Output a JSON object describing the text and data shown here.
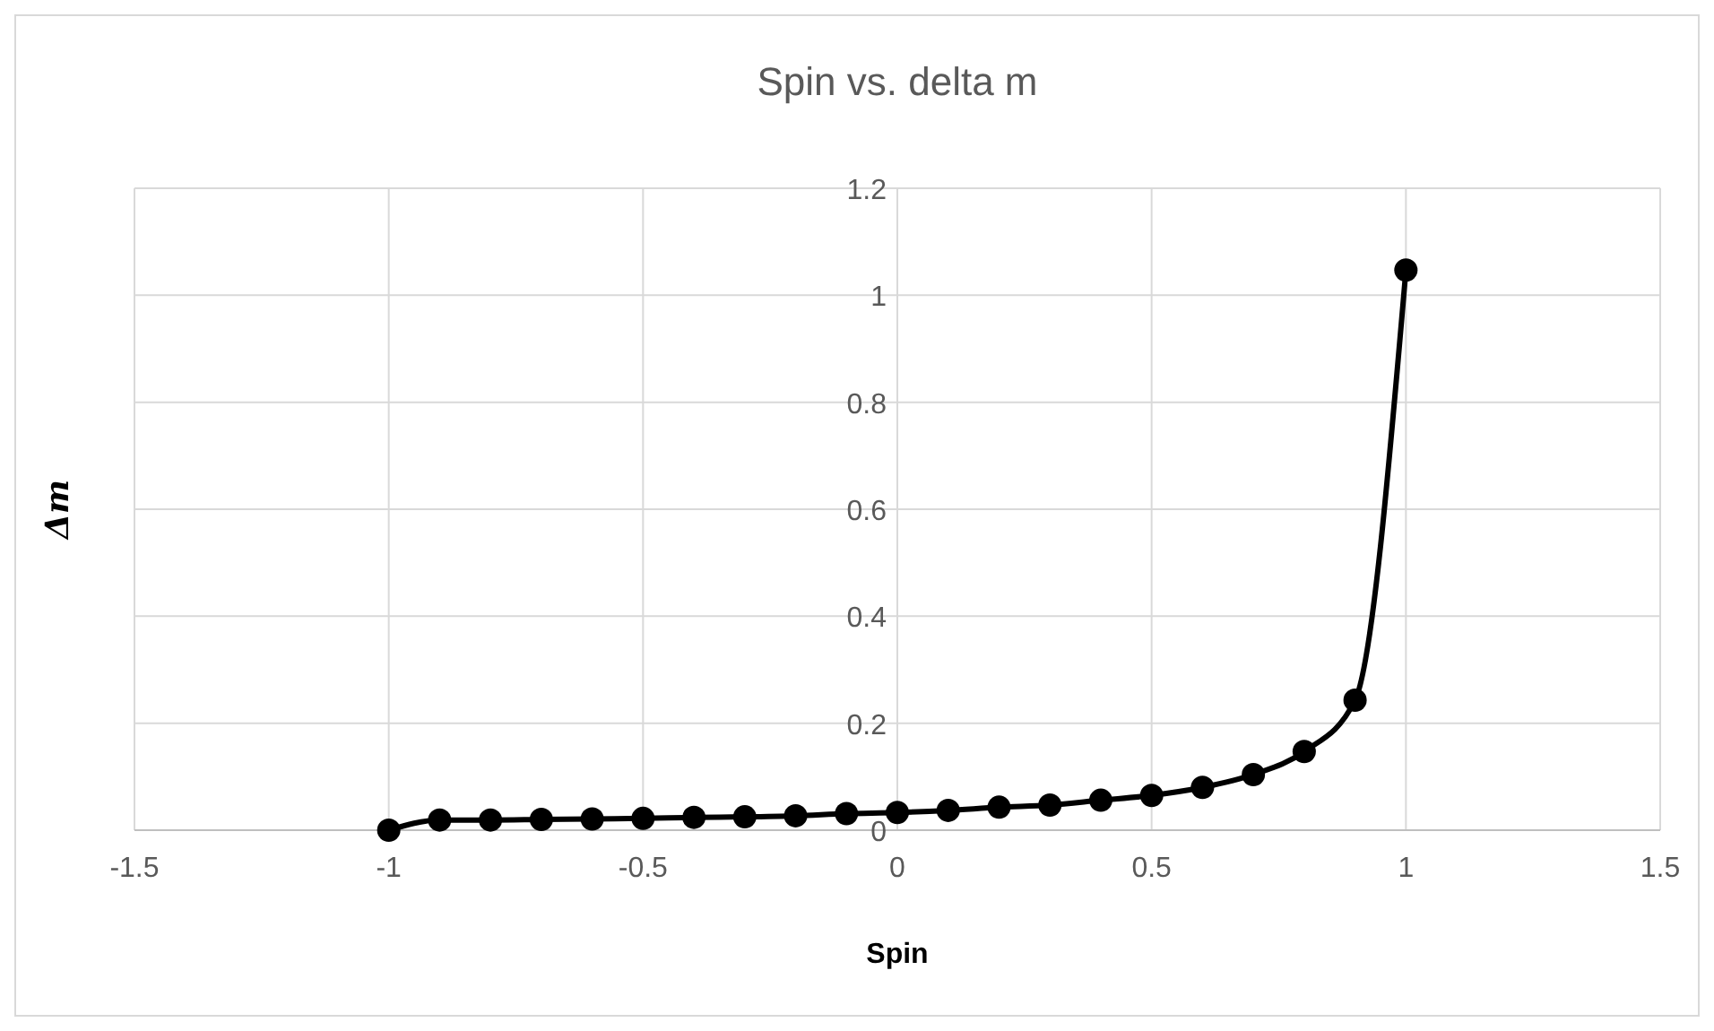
{
  "chart_data": {
    "type": "line",
    "title": "Spin vs. delta m",
    "xlabel": "Spin",
    "ylabel": "Δm",
    "x": [
      -1,
      -0.9,
      -0.8,
      -0.7,
      -0.6,
      -0.5,
      -0.4,
      -0.3,
      -0.2,
      -0.1,
      0,
      0.1,
      0.2,
      0.3,
      0.4,
      0.5,
      0.6,
      0.7,
      0.8,
      0.9,
      1
    ],
    "series": [
      {
        "color": "#000000",
        "values": [
          0,
          0.019,
          0.019,
          0.02,
          0.021,
          0.022,
          0.024,
          0.025,
          0.027,
          0.031,
          0.033,
          0.037,
          0.043,
          0.047,
          0.056,
          0.065,
          0.08,
          0.104,
          0.147,
          0.243,
          1.047
        ]
      }
    ],
    "xlim": [
      -1.5,
      1.5
    ],
    "xticks": [
      -1.5,
      -1,
      -0.5,
      0,
      0.5,
      1,
      1.5
    ],
    "ylim": [
      0,
      1.2
    ],
    "yticks": [
      0,
      0.2,
      0.4,
      0.6,
      0.8,
      1,
      1.2
    ],
    "grid": true,
    "marker": "circle",
    "line_style": "solid"
  }
}
